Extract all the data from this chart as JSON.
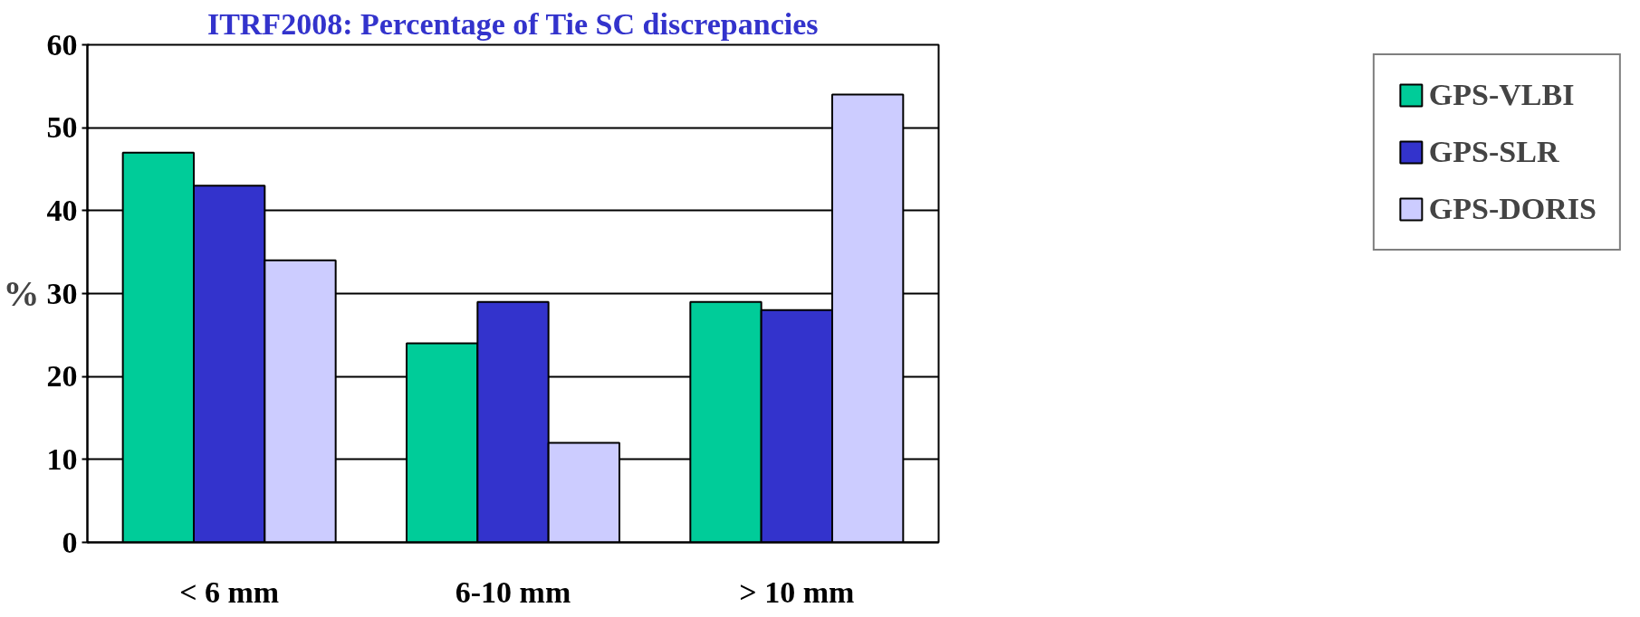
{
  "chart_data": {
    "type": "bar",
    "title": "ITRF2008: Percentage of Tie SC discrepancies",
    "ylabel": "%",
    "categories": [
      "< 6 mm",
      "6-10 mm",
      "> 10 mm"
    ],
    "series": [
      {
        "name": "GPS-VLBI",
        "color": "#00cc99",
        "values": [
          47,
          24,
          29
        ]
      },
      {
        "name": "GPS-SLR",
        "color": "#3333cc",
        "values": [
          43,
          29,
          28
        ]
      },
      {
        "name": "GPS-DORIS",
        "color": "#ccccff",
        "values": [
          34,
          12,
          54
        ]
      }
    ],
    "ylim": [
      0,
      60
    ],
    "yticks": [
      0,
      10,
      20,
      30,
      40,
      50,
      60
    ],
    "grid": "y",
    "legend": "right"
  }
}
